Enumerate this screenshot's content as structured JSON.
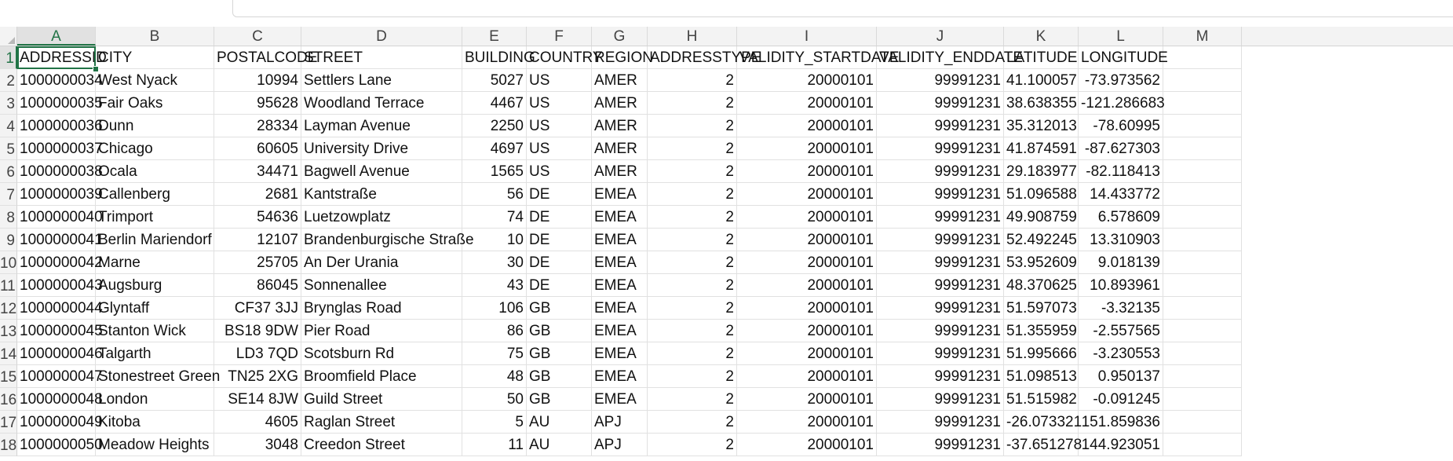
{
  "sheet": {
    "selected_cell": "A1",
    "columns": [
      "A",
      "B",
      "C",
      "D",
      "E",
      "F",
      "G",
      "H",
      "I",
      "J",
      "K",
      "L",
      "M"
    ],
    "rows": [
      [
        "ADDRESSID",
        "CITY",
        "POSTALCODE",
        "STREET",
        "BUILDING",
        "COUNTRY",
        "REGION",
        "ADDRESSTYPE",
        "VALIDITY_STARTDATE",
        "VALIDITY_ENDDATE",
        "LATITUDE",
        "LONGITUDE",
        ""
      ],
      [
        "1000000034",
        "West Nyack",
        "10994",
        "Settlers Lane",
        "5027",
        "US",
        "AMER",
        "2",
        "20000101",
        "99991231",
        "41.100057",
        "-73.973562",
        ""
      ],
      [
        "1000000035",
        "Fair Oaks",
        "95628",
        "Woodland Terrace",
        "4467",
        "US",
        "AMER",
        "2",
        "20000101",
        "99991231",
        "38.638355",
        "-121.286683",
        ""
      ],
      [
        "1000000036",
        "Dunn",
        "28334",
        "Layman Avenue",
        "2250",
        "US",
        "AMER",
        "2",
        "20000101",
        "99991231",
        "35.312013",
        "-78.60995",
        ""
      ],
      [
        "1000000037",
        "Chicago",
        "60605",
        "University Drive",
        "4697",
        "US",
        "AMER",
        "2",
        "20000101",
        "99991231",
        "41.874591",
        "-87.627303",
        ""
      ],
      [
        "1000000038",
        "Ocala",
        "34471",
        "Bagwell Avenue",
        "1565",
        "US",
        "AMER",
        "2",
        "20000101",
        "99991231",
        "29.183977",
        "-82.118413",
        ""
      ],
      [
        "1000000039",
        "Callenberg",
        "2681",
        "Kantstraße",
        "56",
        "DE",
        "EMEA",
        "2",
        "20000101",
        "99991231",
        "51.096588",
        "14.433772",
        ""
      ],
      [
        "1000000040",
        "Trimport",
        "54636",
        "Luetzowplatz",
        "74",
        "DE",
        "EMEA",
        "2",
        "20000101",
        "99991231",
        "49.908759",
        "6.578609",
        ""
      ],
      [
        "1000000041",
        "Berlin Mariendorf",
        "12107",
        "Brandenburgische Straße",
        "10",
        "DE",
        "EMEA",
        "2",
        "20000101",
        "99991231",
        "52.492245",
        "13.310903",
        ""
      ],
      [
        "1000000042",
        "Marne",
        "25705",
        "An Der Urania",
        "30",
        "DE",
        "EMEA",
        "2",
        "20000101",
        "99991231",
        "53.952609",
        "9.018139",
        ""
      ],
      [
        "1000000043",
        "Augsburg",
        "86045",
        "Sonnenallee",
        "43",
        "DE",
        "EMEA",
        "2",
        "20000101",
        "99991231",
        "48.370625",
        "10.893961",
        ""
      ],
      [
        "1000000044",
        "Glyntaff",
        "CF37 3JJ",
        "Brynglas Road",
        "106",
        "GB",
        "EMEA",
        "2",
        "20000101",
        "99991231",
        "51.597073",
        "-3.32135",
        ""
      ],
      [
        "1000000045",
        "Stanton Wick",
        "BS18 9DW",
        "Pier Road",
        "86",
        "GB",
        "EMEA",
        "2",
        "20000101",
        "99991231",
        "51.355959",
        "-2.557565",
        ""
      ],
      [
        "1000000046",
        "Talgarth",
        "LD3 7QD",
        "Scotsburn Rd",
        "75",
        "GB",
        "EMEA",
        "2",
        "20000101",
        "99991231",
        "51.995666",
        "-3.230553",
        ""
      ],
      [
        "1000000047",
        "Stonestreet Green",
        "TN25 2XG",
        "Broomfield Place",
        "48",
        "GB",
        "EMEA",
        "2",
        "20000101",
        "99991231",
        "51.098513",
        "0.950137",
        ""
      ],
      [
        "1000000048",
        "London",
        "SE14 8JW",
        "Guild Street",
        "50",
        "GB",
        "EMEA",
        "2",
        "20000101",
        "99991231",
        "51.515982",
        "-0.091245",
        ""
      ],
      [
        "1000000049",
        "Kitoba",
        "4605",
        "Raglan Street",
        "5",
        "AU",
        "APJ",
        "2",
        "20000101",
        "99991231",
        "-26.073321",
        "151.859836",
        ""
      ],
      [
        "1000000050",
        "Meadow Heights",
        "3048",
        "Creedon Street",
        "11",
        "AU",
        "APJ",
        "2",
        "20000101",
        "99991231",
        "-37.651278",
        "144.923051",
        ""
      ]
    ],
    "row_numbers": [
      "1",
      "2",
      "3",
      "4",
      "5",
      "6",
      "7",
      "8",
      "9",
      "10",
      "11",
      "12",
      "13",
      "14",
      "15",
      "16",
      "17",
      "18"
    ]
  },
  "colors": {
    "accent": "#217346",
    "header_bg": "#f3f3f3",
    "gridline": "#e1e1e1"
  }
}
